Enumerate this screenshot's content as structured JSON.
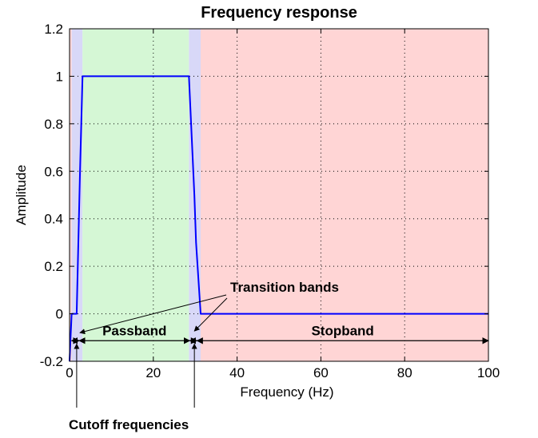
{
  "chart_data": {
    "type": "line",
    "title": "Frequency response",
    "xlabel": "Frequency (Hz)",
    "ylabel": "Amplitude",
    "xlim": [
      0,
      100
    ],
    "ylim": [
      -0.2,
      1.2
    ],
    "x_ticks": [
      0,
      20,
      40,
      60,
      80,
      100
    ],
    "y_ticks": [
      -0.2,
      0,
      0.2,
      0.4,
      0.6,
      0.8,
      1,
      1.2
    ],
    "grid": true,
    "series": [
      {
        "color": "#0000ff",
        "x": [
          0,
          0.5,
          1.7,
          2.5,
          3.1,
          28.5,
          29.8,
          30.2,
          31.3,
          100
        ],
        "y": [
          -0.2,
          0,
          0,
          0.6,
          1,
          1,
          0.5,
          0.3,
          0,
          0
        ]
      }
    ],
    "bands": [
      {
        "x0": 0,
        "x1": 0.5,
        "color": "#ffd5d5"
      },
      {
        "x0": 0.5,
        "x1": 3.1,
        "color": "#d8d8f8"
      },
      {
        "x0": 3.1,
        "x1": 28.5,
        "color": "#d5f7d5"
      },
      {
        "x0": 28.5,
        "x1": 31.3,
        "color": "#d8d8f8"
      },
      {
        "x0": 31.3,
        "x1": 100,
        "color": "#ffd5d5"
      }
    ],
    "annotations": {
      "passband": "Passband",
      "stopband": "Stopband",
      "transition_bands": "Transition bands",
      "cutoff_frequencies": "Cutoff frequencies"
    },
    "annotation_points": {
      "passband_range": [
        2.3,
        28.7
      ],
      "stopband_range": [
        30.4,
        100
      ],
      "left_transition_arrow_range": [
        0.5,
        2.3
      ],
      "right_transition_arrow_range": [
        28.7,
        30.4
      ],
      "cutoff_frequencies": [
        1.7,
        29.8
      ],
      "transition_band_pointer_targets": [
        {
          "x": 1.7,
          "y": -0.1
        },
        {
          "x": 29.8,
          "y": -0.1
        }
      ]
    }
  }
}
